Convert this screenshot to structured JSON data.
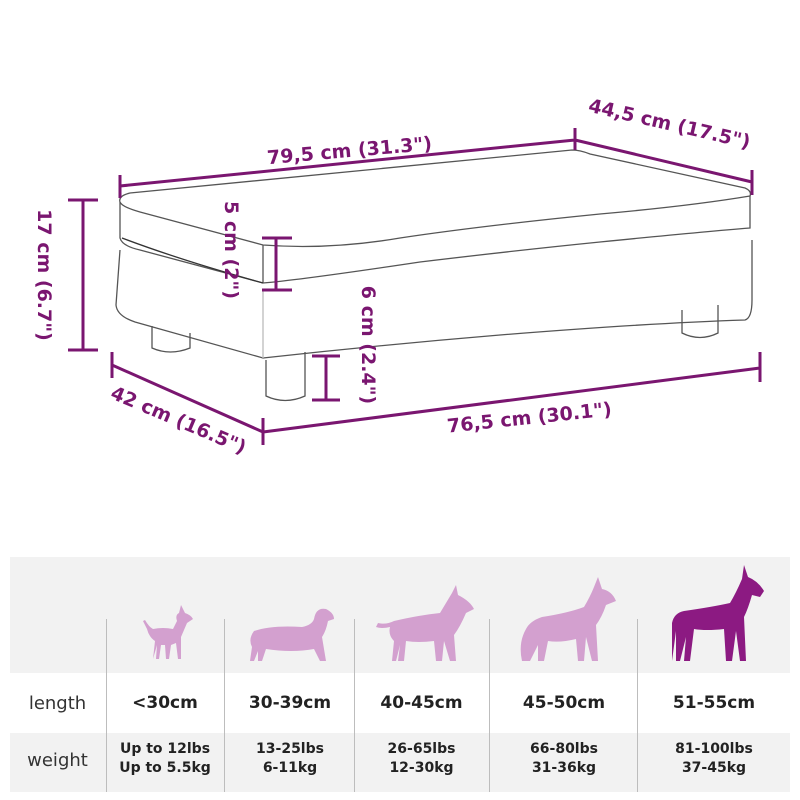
{
  "dimensions": {
    "top_length": "79,5 cm (31.3\")",
    "top_depth": "44,5 cm (17.5\")",
    "total_height": "17 cm (6.7\")",
    "cushion_height": "5 cm (2\")",
    "leg_height": "6 cm (2.4\")",
    "bottom_depth": "42 cm (16.5\")",
    "bottom_length": "76,5 cm (30.1\")"
  },
  "colors": {
    "accent": "#7a1670",
    "dog_light": "#d3a0cf",
    "dog_dark": "#8c1a82",
    "table_bg": "#f2f2f2"
  },
  "size_table": {
    "length_label": "length",
    "weight_label": "weight",
    "columns": [
      {
        "icon": "chihuahua-icon",
        "length": "<30cm",
        "weight_lbs": "Up to 12lbs",
        "weight_kg": "Up to 5.5kg",
        "highlighted": false
      },
      {
        "icon": "dachshund-icon",
        "length": "30-39cm",
        "weight_lbs": "13-25lbs",
        "weight_kg": "6-11kg",
        "highlighted": false
      },
      {
        "icon": "bull-terrier-icon",
        "length": "40-45cm",
        "weight_lbs": "26-65lbs",
        "weight_kg": "12-30kg",
        "highlighted": false
      },
      {
        "icon": "shepherd-dog-icon",
        "length": "45-50cm",
        "weight_lbs": "66-80lbs",
        "weight_kg": "31-36kg",
        "highlighted": false
      },
      {
        "icon": "great-dane-icon",
        "length": "51-55cm",
        "weight_lbs": "81-100lbs",
        "weight_kg": "37-45kg",
        "highlighted": true
      }
    ]
  }
}
